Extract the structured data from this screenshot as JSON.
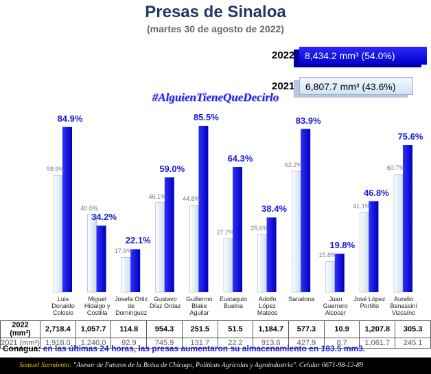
{
  "header": {
    "title": "Presas de Sinaloa",
    "subtitle": "(martes 30 de agosto de 2022)"
  },
  "summary": [
    "8,434.2 mm³ (54.0%)",
    "6,807.7 mm³ (43.6%)"
  ],
  "hashtag": "#AlguienTieneQueDecirlo",
  "chart_data": {
    "type": "bar",
    "categories": [
      "Luis Donaldo Colosio",
      "Miguel Hidalgo y Costilla",
      "Josefa Ortiz de Domínguez",
      "Gustavo Díaz Ordaz",
      "Guillermo Blake Aguilar",
      "Eustaquio Buelna",
      "Adolfo López Mateos",
      "Sanalona",
      "Juan Guerrero Alcocer",
      "José López Portillo",
      "Aurelio Benassini Vizcaíno"
    ],
    "series": [
      {
        "name": "2022",
        "color": "#0000dd",
        "values": [
          84.9,
          34.2,
          22.1,
          59.0,
          85.5,
          64.3,
          38.4,
          83.9,
          19.8,
          46.8,
          75.6
        ],
        "value_labels": [
          "84.9%",
          "34.2%",
          "22.1%",
          "59.0%",
          "85.5%",
          "64.3%",
          "38.4%",
          "83.9%",
          "19.8%",
          "46.8%",
          "75.6%"
        ]
      },
      {
        "name": "2021",
        "color": "#dcecf8",
        "values": [
          59.9,
          40.0,
          17.9,
          46.1,
          44.8,
          27.7,
          29.6,
          62.2,
          15.8,
          41.1,
          60.7
        ],
        "value_labels": [
          "59.9%",
          "40.0%",
          "17.9%",
          "46.1%",
          "44.8%",
          "27.7%",
          "29.6%",
          "62.2%",
          "15.8%",
          "41.1%",
          "60.7%"
        ]
      }
    ]
  },
  "table": {
    "rows": [
      [
        "2022 (mm³)",
        "2,718.4",
        "1,057.7",
        "114.8",
        "954.3",
        "251.5",
        "51.5",
        "1,184.7",
        "577.3",
        "10.9",
        "1,207.8",
        "305.3"
      ],
      [
        "2021 (mm³)",
        "1,918.0",
        "1,240.0",
        "92.9",
        "745.9",
        "131.7",
        "22.2",
        "913.6",
        "427.9",
        "8.7",
        "1,061.7",
        "245.1"
      ]
    ]
  },
  "note": {
    "source": "Conagua:",
    "text": "en las últimas 24 horas, las presas aumentaron su almacenamiento en 183.5 mm3."
  },
  "footer": {
    "author": "Samuel Sarmiento:",
    "text": "\"Asesor de Futuros de la Bolsa de Chicago, Políticas Agrícolas y Agroindustria\". Celular 6671-98-12-89"
  }
}
